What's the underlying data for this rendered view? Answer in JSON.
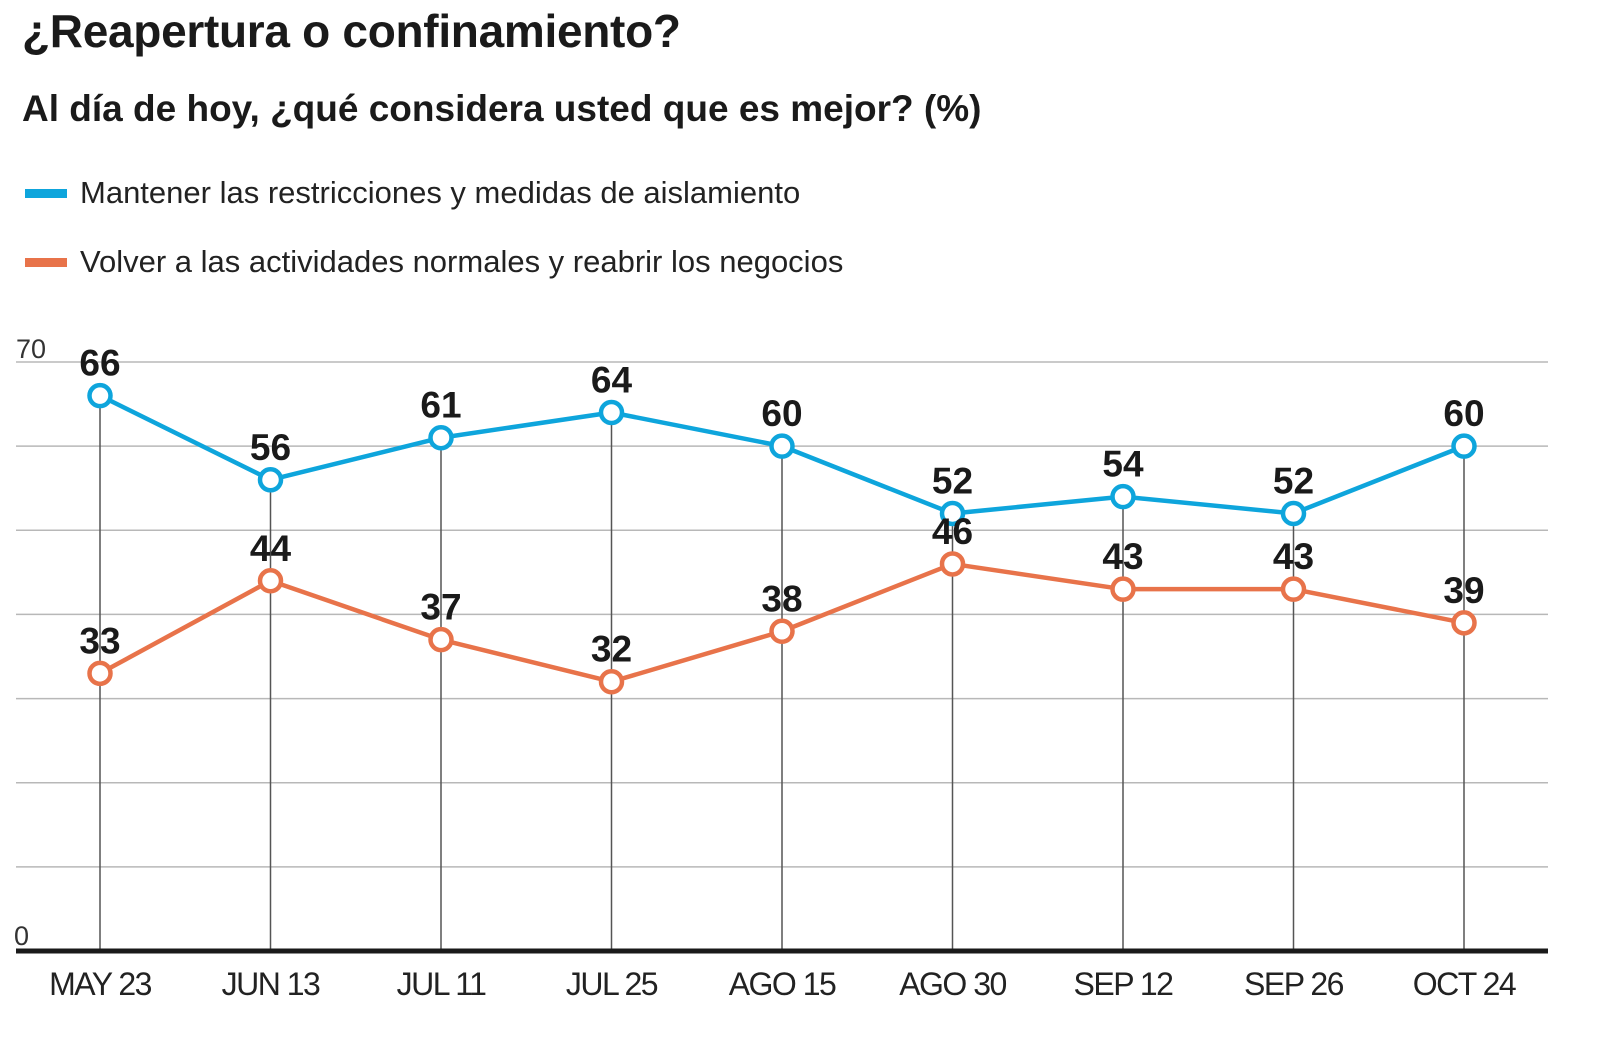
{
  "title": "¿Reapertura o confinamiento?",
  "subtitle": "Al día de hoy, ¿qué considera usted que es mejor? (%)",
  "legend": [
    {
      "label": "Mantener las restricciones y medidas de aislamiento",
      "color": "#0ea5dc"
    },
    {
      "label": "Volver a las actividades normales y reabrir los negocios",
      "color": "#e8734a"
    }
  ],
  "chart_data": {
    "type": "line",
    "title": "¿Reapertura o confinamiento?",
    "subtitle": "Al día de hoy, ¿qué considera usted que es mejor? (%)",
    "xlabel": "",
    "ylabel": "",
    "categories": [
      "MAY 23",
      "JUN 13",
      "JUL 11",
      "JUL 25",
      "AGO 15",
      "AGO 30",
      "SEP 12",
      "SEP 26",
      "OCT 24"
    ],
    "ylim": [
      0,
      70
    ],
    "ytick_labels": [
      "0",
      "70"
    ],
    "gridlines": [
      10,
      20,
      30,
      40,
      50,
      60,
      70
    ],
    "grid": true,
    "legend_position": "top-left",
    "series": [
      {
        "name": "Mantener las restricciones y medidas de aislamiento",
        "color": "#0ea5dc",
        "values": [
          66,
          56,
          61,
          64,
          60,
          52,
          54,
          52,
          60
        ]
      },
      {
        "name": "Volver a las actividades normales y reabrir los negocios",
        "color": "#e8734a",
        "values": [
          33,
          44,
          37,
          32,
          38,
          46,
          43,
          43,
          39
        ]
      }
    ]
  }
}
